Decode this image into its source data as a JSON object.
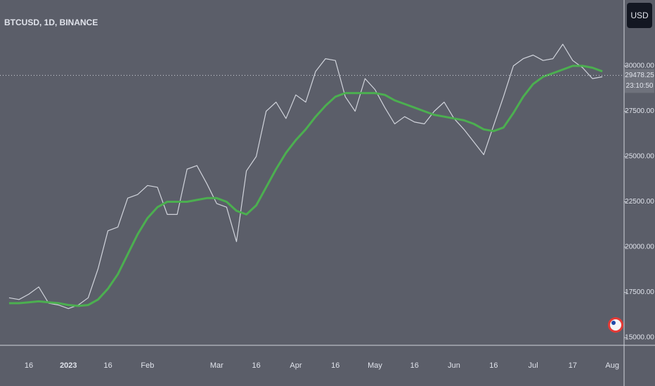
{
  "chart_data": {
    "type": "line",
    "title": "BTCUSD, 1D, BINANCE",
    "currency_button": "USD",
    "countdown": "23:10:50",
    "last_price": 29478.25,
    "categories": [
      null,
      null,
      "16",
      null,
      null,
      null,
      "2023",
      null,
      null,
      null,
      "16",
      null,
      null,
      null,
      "Feb",
      null,
      null,
      null,
      null,
      null,
      null,
      "Mar",
      null,
      null,
      null,
      "16",
      null,
      null,
      null,
      "Apr",
      null,
      null,
      null,
      "16",
      null,
      null,
      null,
      "May",
      null,
      null,
      null,
      "16",
      null,
      null,
      null,
      "Jun",
      null,
      null,
      null,
      "16",
      null,
      null,
      null,
      "Jul",
      null,
      null,
      null,
      "17",
      null,
      null,
      null,
      "Aug"
    ],
    "series": [
      {
        "color": "#d1d4dc",
        "values": [
          17200,
          17100,
          17400,
          17800,
          16900,
          16800,
          16600,
          16800,
          17200,
          18800,
          20900,
          21100,
          22700,
          22900,
          23400,
          23300,
          21800,
          21800,
          24300,
          24500,
          23500,
          22400,
          22200,
          20300,
          24200,
          25000,
          27500,
          28000,
          27100,
          28400,
          28000,
          29700,
          30400,
          30300,
          28300,
          27500,
          29300,
          28700,
          27700,
          26800,
          27200,
          26900,
          26800,
          27500,
          28000,
          27100,
          26500,
          25800,
          25100,
          26700,
          28300,
          30000,
          30400,
          30600,
          30300,
          30400,
          31200,
          30300,
          29900,
          29300,
          29400,
          null
        ]
      },
      {
        "color": "#4caf50",
        "values": [
          16900,
          16900,
          16950,
          17000,
          16950,
          16900,
          16800,
          16750,
          16800,
          17100,
          17700,
          18500,
          19600,
          20700,
          21600,
          22200,
          22500,
          22500,
          22500,
          22600,
          22700,
          22700,
          22500,
          22000,
          21800,
          22300,
          23300,
          24300,
          25200,
          25900,
          26500,
          27200,
          27800,
          28300,
          28500,
          28500,
          28500,
          28500,
          28400,
          28100,
          27900,
          27700,
          27500,
          27300,
          27200,
          27100,
          27000,
          26800,
          26500,
          26400,
          26600,
          27400,
          28300,
          29000,
          29400,
          29600,
          29800,
          30000,
          30000,
          29900,
          29700,
          null
        ]
      }
    ],
    "ylim": [
      14575,
      33640
    ],
    "yticks": [
      {
        "value": 15000,
        "label": "15000.00"
      },
      {
        "value": 17500,
        "label": "17500.00"
      },
      {
        "value": 20000,
        "label": "20000.00"
      },
      {
        "value": 22500,
        "label": "22500.00"
      },
      {
        "value": 25000,
        "label": "25000.00"
      },
      {
        "value": 27500,
        "label": "27500.00"
      },
      {
        "value": 30000,
        "label": "30000.00"
      }
    ],
    "grid": false
  }
}
